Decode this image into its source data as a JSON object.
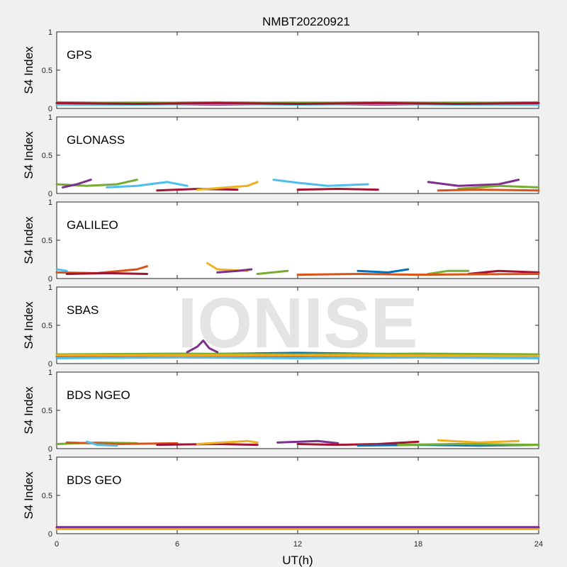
{
  "figure": {
    "title": "NMBT20220921",
    "watermark": "IONISE",
    "xlabel": "UT(h)",
    "background": "#f0f0f0"
  },
  "chart_data": {
    "type": "scatter",
    "x_axis": {
      "label": "UT(h)",
      "range": [
        0,
        24
      ],
      "ticks": [
        0,
        6,
        12,
        18,
        24
      ]
    },
    "y_axis": {
      "label": "S4 Index",
      "range": [
        0,
        1
      ],
      "ticks": [
        0,
        0.5,
        1
      ]
    },
    "grid": false,
    "series_colors": [
      "#0072bd",
      "#d95319",
      "#edb120",
      "#7e2f8e",
      "#77ac30",
      "#4dbeee",
      "#a2142f"
    ],
    "panels": [
      {
        "name": "GPS",
        "label": "GPS",
        "tracks": [
          {
            "color": "#0072bd",
            "points": [
              [
                0.0,
                0.06
              ],
              [
                4.0,
                0.07
              ],
              [
                8.0,
                0.06
              ],
              [
                12.0,
                0.07
              ],
              [
                16.0,
                0.06
              ],
              [
                20.0,
                0.07
              ],
              [
                24.0,
                0.06
              ]
            ]
          },
          {
            "color": "#d95319",
            "points": [
              [
                0.0,
                0.08
              ],
              [
                4.0,
                0.07
              ],
              [
                8.0,
                0.08
              ],
              [
                12.0,
                0.07
              ],
              [
                16.0,
                0.08
              ],
              [
                20.0,
                0.07
              ],
              [
                24.0,
                0.08
              ]
            ]
          },
          {
            "color": "#edb120",
            "points": [
              [
                0.0,
                0.07
              ],
              [
                4.0,
                0.08
              ],
              [
                8.0,
                0.07
              ],
              [
                12.0,
                0.08
              ],
              [
                16.0,
                0.07
              ],
              [
                20.0,
                0.08
              ],
              [
                24.0,
                0.07
              ]
            ]
          },
          {
            "color": "#7e2f8e",
            "points": [
              [
                0.0,
                0.05
              ],
              [
                4.0,
                0.06
              ],
              [
                8.0,
                0.05
              ],
              [
                12.0,
                0.06
              ],
              [
                16.0,
                0.05
              ],
              [
                20.0,
                0.06
              ],
              [
                24.0,
                0.05
              ]
            ]
          },
          {
            "color": "#77ac30",
            "points": [
              [
                0.0,
                0.08
              ],
              [
                4.0,
                0.07
              ],
              [
                8.0,
                0.08
              ],
              [
                12.0,
                0.07
              ],
              [
                16.0,
                0.08
              ],
              [
                20.0,
                0.07
              ],
              [
                24.0,
                0.08
              ]
            ]
          },
          {
            "color": "#4dbeee",
            "points": [
              [
                0.0,
                0.05
              ],
              [
                4.0,
                0.05
              ],
              [
                8.0,
                0.06
              ],
              [
                12.0,
                0.05
              ],
              [
                16.0,
                0.06
              ],
              [
                20.0,
                0.05
              ],
              [
                24.0,
                0.05
              ]
            ]
          },
          {
            "color": "#a2142f",
            "points": [
              [
                0.0,
                0.07
              ],
              [
                4.0,
                0.06
              ],
              [
                8.0,
                0.07
              ],
              [
                12.0,
                0.06
              ],
              [
                16.0,
                0.07
              ],
              [
                20.0,
                0.06
              ],
              [
                24.0,
                0.07
              ]
            ]
          }
        ]
      },
      {
        "name": "GLONASS",
        "label": "GLONASS",
        "tracks": [
          {
            "color": "#77ac30",
            "points": [
              [
                0.0,
                0.12
              ],
              [
                1.5,
                0.1
              ],
              [
                3.0,
                0.12
              ],
              [
                4.0,
                0.18
              ]
            ]
          },
          {
            "color": "#7e2f8e",
            "points": [
              [
                0.3,
                0.08
              ],
              [
                1.0,
                0.12
              ],
              [
                1.7,
                0.18
              ]
            ]
          },
          {
            "color": "#4dbeee",
            "points": [
              [
                2.5,
                0.08
              ],
              [
                4.0,
                0.1
              ],
              [
                5.5,
                0.15
              ],
              [
                6.5,
                0.1
              ]
            ]
          },
          {
            "color": "#a2142f",
            "points": [
              [
                5.0,
                0.04
              ],
              [
                7.0,
                0.06
              ],
              [
                9.0,
                0.05
              ]
            ]
          },
          {
            "color": "#edb120",
            "points": [
              [
                7.0,
                0.05
              ],
              [
                9.5,
                0.1
              ],
              [
                10.0,
                0.15
              ]
            ]
          },
          {
            "color": "#4dbeee",
            "points": [
              [
                10.8,
                0.18
              ],
              [
                12.0,
                0.14
              ],
              [
                13.5,
                0.1
              ],
              [
                15.5,
                0.12
              ]
            ]
          },
          {
            "color": "#a2142f",
            "points": [
              [
                12.0,
                0.05
              ],
              [
                14.0,
                0.06
              ],
              [
                16.0,
                0.05
              ]
            ]
          },
          {
            "color": "#7e2f8e",
            "points": [
              [
                18.5,
                0.15
              ],
              [
                20.0,
                0.1
              ],
              [
                22.0,
                0.12
              ],
              [
                23.0,
                0.18
              ]
            ]
          },
          {
            "color": "#77ac30",
            "points": [
              [
                20.0,
                0.06
              ],
              [
                22.0,
                0.1
              ],
              [
                24.0,
                0.08
              ]
            ]
          },
          {
            "color": "#d95319",
            "points": [
              [
                19.0,
                0.04
              ],
              [
                21.0,
                0.05
              ],
              [
                24.0,
                0.04
              ]
            ]
          }
        ]
      },
      {
        "name": "GALILEO",
        "label": "GALILEO",
        "tracks": [
          {
            "color": "#4dbeee",
            "points": [
              [
                0.0,
                0.12
              ],
              [
                0.5,
                0.1
              ]
            ]
          },
          {
            "color": "#d95319",
            "points": [
              [
                0.0,
                0.08
              ],
              [
                2.0,
                0.07
              ],
              [
                4.0,
                0.12
              ],
              [
                4.5,
                0.16
              ]
            ]
          },
          {
            "color": "#a2142f",
            "points": [
              [
                0.5,
                0.06
              ],
              [
                2.5,
                0.07
              ],
              [
                4.5,
                0.06
              ]
            ]
          },
          {
            "color": "#edb120",
            "points": [
              [
                7.5,
                0.2
              ],
              [
                8.0,
                0.12
              ],
              [
                9.5,
                0.1
              ]
            ]
          },
          {
            "color": "#7e2f8e",
            "points": [
              [
                8.0,
                0.08
              ],
              [
                9.0,
                0.1
              ],
              [
                9.7,
                0.12
              ]
            ]
          },
          {
            "color": "#77ac30",
            "points": [
              [
                10.0,
                0.06
              ],
              [
                11.5,
                0.1
              ]
            ]
          },
          {
            "color": "#0072bd",
            "points": [
              [
                15.0,
                0.1
              ],
              [
                16.5,
                0.08
              ],
              [
                17.5,
                0.12
              ]
            ]
          },
          {
            "color": "#77ac30",
            "points": [
              [
                18.5,
                0.06
              ],
              [
                19.5,
                0.1
              ],
              [
                20.5,
                0.1
              ]
            ]
          },
          {
            "color": "#a2142f",
            "points": [
              [
                20.5,
                0.06
              ],
              [
                22.0,
                0.1
              ],
              [
                24.0,
                0.08
              ]
            ]
          },
          {
            "color": "#d95319",
            "points": [
              [
                12.0,
                0.05
              ],
              [
                15.0,
                0.06
              ],
              [
                18.0,
                0.05
              ],
              [
                24.0,
                0.06
              ]
            ]
          }
        ]
      },
      {
        "name": "SBAS",
        "label": "SBAS",
        "tracks": [
          {
            "color": "#0072bd",
            "points": [
              [
                0.0,
                0.1
              ],
              [
                6.0,
                0.12
              ],
              [
                12.0,
                0.14
              ],
              [
                18.0,
                0.12
              ],
              [
                24.0,
                0.11
              ]
            ]
          },
          {
            "color": "#77ac30",
            "points": [
              [
                0.0,
                0.12
              ],
              [
                6.0,
                0.13
              ],
              [
                12.0,
                0.12
              ],
              [
                18.0,
                0.13
              ],
              [
                24.0,
                0.12
              ]
            ]
          },
          {
            "color": "#d95319",
            "points": [
              [
                0.0,
                0.09
              ],
              [
                6.0,
                0.1
              ],
              [
                12.0,
                0.09
              ],
              [
                18.0,
                0.1
              ],
              [
                24.0,
                0.09
              ]
            ]
          },
          {
            "color": "#4dbeee",
            "points": [
              [
                0.0,
                0.07
              ],
              [
                6.0,
                0.08
              ],
              [
                12.0,
                0.07
              ],
              [
                18.0,
                0.08
              ],
              [
                24.0,
                0.07
              ]
            ]
          },
          {
            "color": "#7e2f8e",
            "points": [
              [
                6.5,
                0.15
              ],
              [
                7.0,
                0.22
              ],
              [
                7.3,
                0.3
              ],
              [
                7.6,
                0.2
              ],
              [
                8.0,
                0.15
              ]
            ]
          },
          {
            "color": "#edb120",
            "points": [
              [
                0.0,
                0.11
              ],
              [
                12.0,
                0.11
              ],
              [
                24.0,
                0.1
              ]
            ]
          }
        ]
      },
      {
        "name": "BDS NGEO",
        "label": "BDS NGEO",
        "tracks": [
          {
            "color": "#77ac30",
            "points": [
              [
                0.0,
                0.06
              ],
              [
                2.0,
                0.08
              ],
              [
                4.0,
                0.07
              ]
            ]
          },
          {
            "color": "#d95319",
            "points": [
              [
                0.5,
                0.08
              ],
              [
                3.0,
                0.06
              ],
              [
                6.0,
                0.07
              ]
            ]
          },
          {
            "color": "#4dbeee",
            "points": [
              [
                1.5,
                0.09
              ],
              [
                2.0,
                0.05
              ],
              [
                3.0,
                0.04
              ]
            ]
          },
          {
            "color": "#a2142f",
            "points": [
              [
                5.0,
                0.05
              ],
              [
                8.0,
                0.06
              ],
              [
                10.0,
                0.05
              ]
            ]
          },
          {
            "color": "#edb120",
            "points": [
              [
                7.0,
                0.06
              ],
              [
                9.5,
                0.1
              ],
              [
                10.0,
                0.08
              ]
            ]
          },
          {
            "color": "#7e2f8e",
            "points": [
              [
                11.0,
                0.08
              ],
              [
                13.0,
                0.1
              ],
              [
                14.0,
                0.07
              ]
            ]
          },
          {
            "color": "#a2142f",
            "points": [
              [
                12.0,
                0.06
              ],
              [
                14.0,
                0.05
              ],
              [
                16.0,
                0.06
              ],
              [
                18.0,
                0.09
              ]
            ]
          },
          {
            "color": "#0072bd",
            "points": [
              [
                15.0,
                0.04
              ],
              [
                18.0,
                0.05
              ],
              [
                21.0,
                0.04
              ],
              [
                24.0,
                0.05
              ]
            ]
          },
          {
            "color": "#edb120",
            "points": [
              [
                19.0,
                0.11
              ],
              [
                21.0,
                0.08
              ],
              [
                23.0,
                0.1
              ]
            ]
          },
          {
            "color": "#77ac30",
            "points": [
              [
                17.0,
                0.05
              ],
              [
                20.0,
                0.06
              ],
              [
                24.0,
                0.05
              ]
            ]
          }
        ]
      },
      {
        "name": "BDS GEO",
        "label": "BDS GEO",
        "tracks": [
          {
            "color": "#a2142f",
            "points": [
              [
                0.0,
                0.08
              ],
              [
                24.0,
                0.08
              ]
            ]
          },
          {
            "color": "#d95319",
            "points": [
              [
                0.0,
                0.07
              ],
              [
                24.0,
                0.07
              ]
            ]
          },
          {
            "color": "#edb120",
            "points": [
              [
                0.0,
                0.06
              ],
              [
                24.0,
                0.06
              ]
            ]
          },
          {
            "color": "#7e2f8e",
            "points": [
              [
                0.0,
                0.085
              ],
              [
                24.0,
                0.085
              ]
            ]
          }
        ]
      }
    ]
  }
}
